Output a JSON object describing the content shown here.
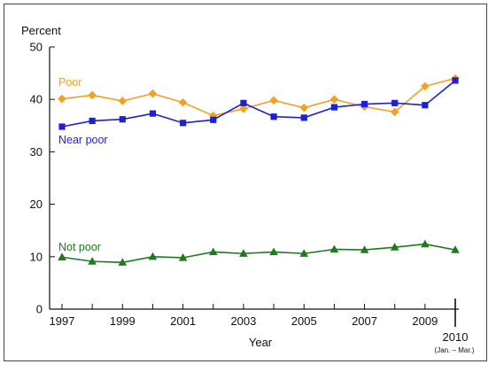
{
  "chart_data": {
    "type": "line",
    "ylabel": "Percent",
    "xlabel": "Year",
    "ylim": [
      0,
      50
    ],
    "yticks": [
      0,
      10,
      20,
      30,
      40,
      50
    ],
    "x": [
      "1997",
      "1998",
      "1999",
      "2000",
      "2001",
      "2002",
      "2003",
      "2004",
      "2005",
      "2006",
      "2007",
      "2008",
      "2009",
      "2010"
    ],
    "xtick_labels": [
      "1997",
      "1999",
      "2001",
      "2003",
      "2005",
      "2007",
      "2009",
      "2010"
    ],
    "last_tick_sublabel": "(Jan. – Mar.)",
    "grid": false,
    "series": [
      {
        "name": "Poor",
        "color": "#f5a024",
        "marker": "diamond",
        "values": [
          40.1,
          40.8,
          39.7,
          41.1,
          39.4,
          36.9,
          38.2,
          39.8,
          38.4,
          40.0,
          38.6,
          37.6,
          42.5,
          44.0
        ]
      },
      {
        "name": "Near poor",
        "color": "#1f1fd6",
        "marker": "square",
        "values": [
          34.8,
          35.9,
          36.2,
          37.3,
          35.5,
          36.1,
          39.3,
          36.7,
          36.5,
          38.5,
          39.1,
          39.3,
          38.9,
          43.6
        ]
      },
      {
        "name": "Not poor",
        "color": "#1e7a1e",
        "marker": "triangle",
        "values": [
          9.9,
          9.1,
          8.9,
          10.0,
          9.8,
          10.9,
          10.6,
          10.9,
          10.6,
          11.4,
          11.3,
          11.8,
          12.4,
          11.3
        ]
      }
    ]
  }
}
